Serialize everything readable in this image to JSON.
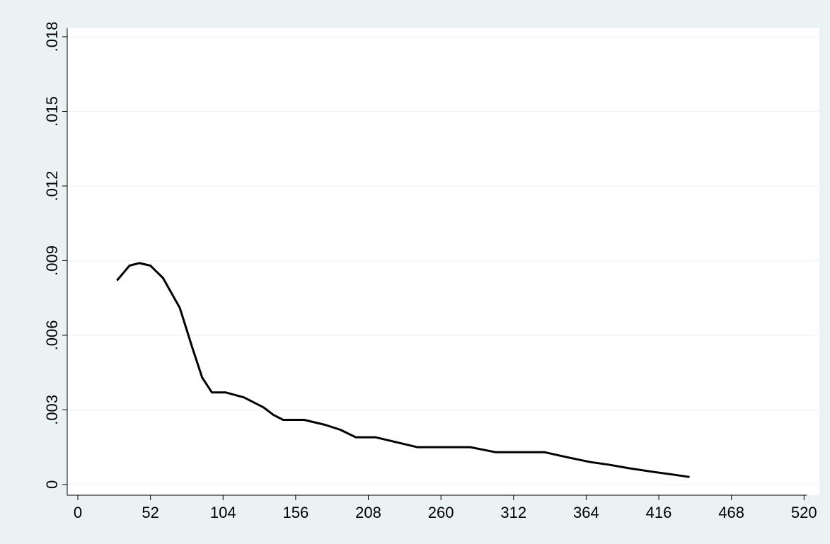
{
  "chart_data": {
    "type": "line",
    "x": [
      28,
      37,
      44,
      52,
      61,
      73,
      82,
      89,
      96,
      106,
      119,
      133,
      140,
      147,
      162,
      177,
      188,
      199,
      213,
      228,
      243,
      258,
      281,
      299,
      314,
      334,
      350,
      367,
      380,
      395,
      413,
      426,
      438
    ],
    "series": [
      {
        "color": "#000000",
        "values": [
          0.0082,
          0.0088,
          0.0089,
          0.0088,
          0.0083,
          0.0071,
          0.0055,
          0.0043,
          0.0037,
          0.0037,
          0.0035,
          0.0031,
          0.0028,
          0.0026,
          0.0026,
          0.0024,
          0.0022,
          0.0019,
          0.0019,
          0.0017,
          0.0015,
          0.0015,
          0.0015,
          0.0013,
          0.0013,
          0.0013,
          0.0011,
          0.0009,
          0.0008,
          0.00065,
          0.0005,
          0.0004,
          0.0003
        ]
      }
    ],
    "xlim": [
      -7.6,
      531
    ],
    "xticks": [
      0,
      52,
      104,
      156,
      208,
      260,
      312,
      364,
      416,
      468,
      520
    ],
    "ylim": [
      -0.00043,
      0.01834
    ],
    "yticks": [
      0,
      {
        "value": 0.003,
        "label": ".003"
      },
      {
        "value": 0.006,
        "label": ".006"
      },
      {
        "value": 0.009,
        "label": ".009"
      },
      {
        "value": 0.012,
        "label": ".012"
      },
      {
        "value": 0.015,
        "label": ".015"
      },
      {
        "value": 0.018,
        "label": ".018"
      }
    ],
    "grid": true
  }
}
